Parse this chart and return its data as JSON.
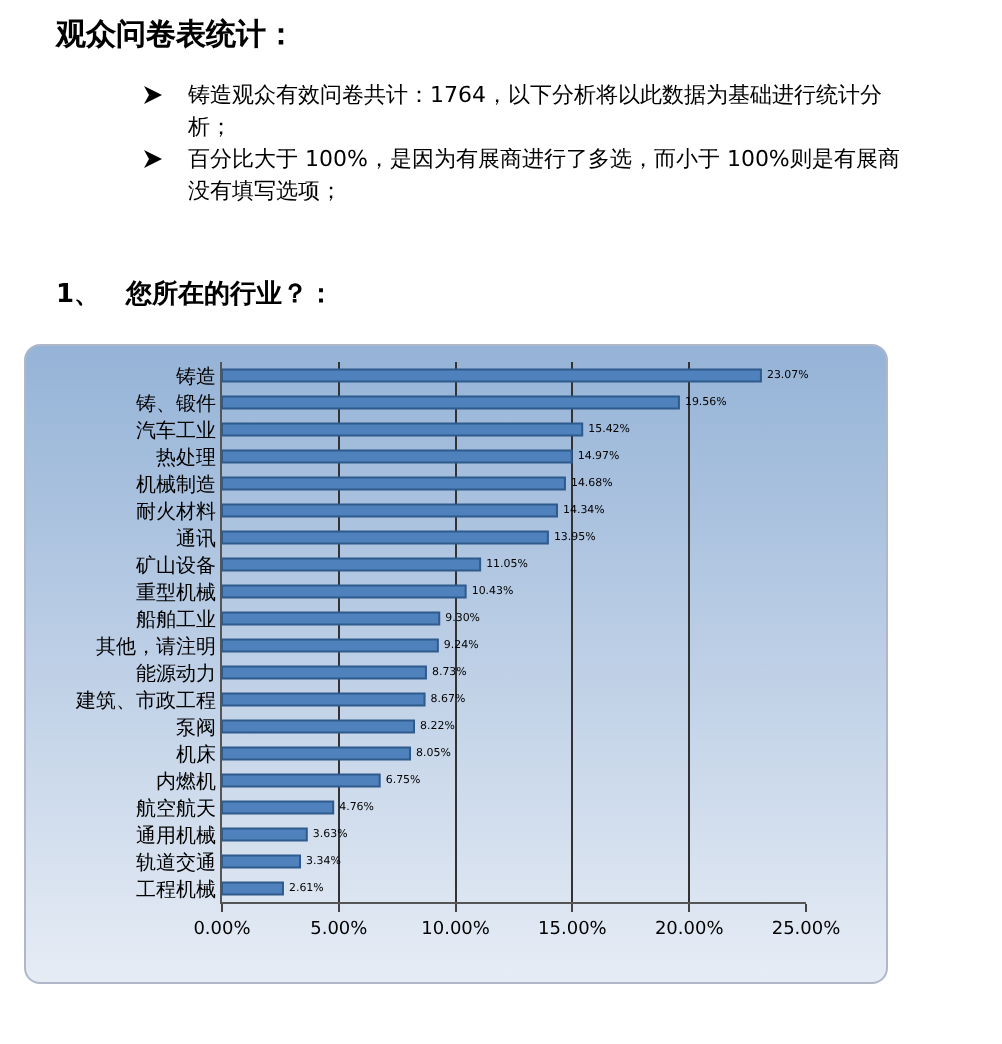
{
  "chart_data": {
    "type": "bar",
    "orientation": "horizontal",
    "title": "观众问卷表统计：",
    "annotations": [
      "铸造观众有效问卷共计：1764，以下分析将以此数据为基础进行统计分析；",
      "百分比大于 100%，是因为有展商进行了多选，而小于 100%则是有展商没有填写选项；"
    ],
    "subtitle": "1、　您所在的行业？：",
    "categories": [
      "铸造",
      "铸、锻件",
      "汽车工业",
      "热处理",
      "机械制造",
      "耐火材料",
      "通讯",
      "矿山设备",
      "重型机械",
      "船舶工业",
      "其他，请注明",
      "能源动力",
      "建筑、市政工程",
      "泵阀",
      "机床",
      "内燃机",
      "航空航天",
      "通用机械",
      "轨道交通",
      "工程机械"
    ],
    "values": [
      23.07,
      19.56,
      15.42,
      14.97,
      14.68,
      14.34,
      13.95,
      11.05,
      10.43,
      9.3,
      9.24,
      8.73,
      8.67,
      8.22,
      8.05,
      6.75,
      4.76,
      3.63,
      3.34,
      2.61
    ],
    "value_labels": [
      "23.07%",
      "19.56%",
      "15.42%",
      "14.97%",
      "14.68%",
      "14.34%",
      "13.95%",
      "11.05%",
      "10.43%",
      "9.30%",
      "9.24%",
      "8.73%",
      "8.67%",
      "8.22%",
      "8.05%",
      "6.75%",
      "4.76%",
      "3.63%",
      "3.34%",
      "2.61%"
    ],
    "color": "#4f81bd",
    "xlim": [
      0,
      25
    ],
    "xticks": [
      {
        "value": 0,
        "label": "0.00%"
      },
      {
        "value": 5,
        "label": "5.00%"
      },
      {
        "value": 10,
        "label": "10.00%"
      },
      {
        "value": 15,
        "label": "15.00%"
      },
      {
        "value": 20,
        "label": "20.00%"
      },
      {
        "value": 25,
        "label": "25.00%"
      }
    ],
    "grid": "x"
  }
}
